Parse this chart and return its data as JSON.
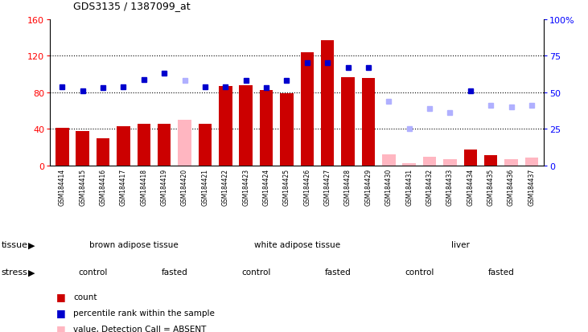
{
  "title": "GDS3135 / 1387099_at",
  "samples": [
    "GSM184414",
    "GSM184415",
    "GSM184416",
    "GSM184417",
    "GSM184418",
    "GSM184419",
    "GSM184420",
    "GSM184421",
    "GSM184422",
    "GSM184423",
    "GSM184424",
    "GSM184425",
    "GSM184426",
    "GSM184427",
    "GSM184428",
    "GSM184429",
    "GSM184430",
    "GSM184431",
    "GSM184432",
    "GSM184433",
    "GSM184434",
    "GSM184435",
    "GSM184436",
    "GSM184437"
  ],
  "count_values": [
    41,
    38,
    30,
    43,
    46,
    46,
    50,
    46,
    87,
    88,
    83,
    79,
    124,
    137,
    97,
    96,
    12,
    3,
    10,
    7,
    18,
    11,
    7,
    9
  ],
  "count_absent": [
    false,
    false,
    false,
    false,
    false,
    false,
    true,
    false,
    false,
    false,
    false,
    false,
    false,
    false,
    false,
    false,
    true,
    true,
    true,
    true,
    false,
    false,
    true,
    true
  ],
  "rank_values": [
    54,
    51,
    53,
    54,
    59,
    63,
    58,
    54,
    54,
    58,
    53,
    58,
    70,
    70,
    67,
    67,
    44,
    25,
    39,
    36,
    51,
    41,
    40,
    41
  ],
  "rank_absent": [
    false,
    false,
    false,
    false,
    false,
    false,
    true,
    false,
    false,
    false,
    false,
    false,
    false,
    false,
    false,
    false,
    true,
    true,
    true,
    true,
    false,
    true,
    true,
    true
  ],
  "left_ylim": [
    0,
    160
  ],
  "right_ylim": [
    0,
    100
  ],
  "left_yticks": [
    0,
    40,
    80,
    120,
    160
  ],
  "right_ytick_vals": [
    0,
    25,
    50,
    75,
    100
  ],
  "right_ytick_labels": [
    "0",
    "25",
    "50",
    "75",
    "100%"
  ],
  "bar_color_present": "#CC0000",
  "bar_color_absent": "#FFB6C1",
  "rank_color_present": "#0000CD",
  "rank_color_absent": "#B0B0FF",
  "tissue_labels": [
    "brown adipose tissue",
    "white adipose tissue",
    "liver"
  ],
  "tissue_starts": [
    0,
    8,
    16
  ],
  "tissue_ends": [
    8,
    16,
    24
  ],
  "tissue_color": "#90EE90",
  "stress_labels": [
    "control",
    "fasted",
    "control",
    "fasted",
    "control",
    "fasted"
  ],
  "stress_starts": [
    0,
    4,
    8,
    12,
    16,
    20
  ],
  "stress_ends": [
    4,
    8,
    12,
    16,
    20,
    24
  ],
  "stress_color": "#DA70D6",
  "legend_items": [
    {
      "color": "#CC0000",
      "label": "count"
    },
    {
      "color": "#0000CD",
      "label": "percentile rank within the sample"
    },
    {
      "color": "#FFB6C1",
      "label": "value, Detection Call = ABSENT"
    },
    {
      "color": "#B0B0FF",
      "label": "rank, Detection Call = ABSENT"
    }
  ],
  "grid_dotted_vals": [
    40,
    80,
    120
  ],
  "xticklabel_bg": "#c8c8c8"
}
